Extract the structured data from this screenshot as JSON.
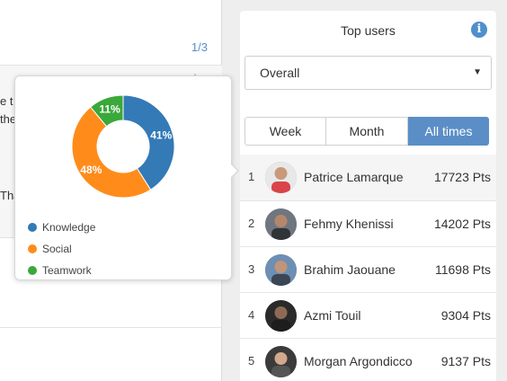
{
  "feed": {
    "pager": "1/3",
    "fragments": [
      {
        "text": "e t",
        "top": 105
      },
      {
        "text": "the",
        "top": 125
      },
      {
        "text": "Tha",
        "top": 210
      }
    ],
    "menu_dots": "⋮"
  },
  "popover": {
    "chart_data": {
      "type": "pie",
      "categories": [
        "Knowledge",
        "Social",
        "Teamwork"
      ],
      "values": [
        41,
        48,
        11
      ],
      "labels": [
        "41%",
        "48%",
        "11%"
      ],
      "colors": [
        "#337ab7",
        "#ff8c1a",
        "#3aa83a"
      ],
      "donut": true,
      "legend": "bottom-left"
    }
  },
  "panel": {
    "title": "Top users",
    "info_glyph": "i",
    "period_select": "Overall",
    "tabs": [
      {
        "label": "Week",
        "active": false
      },
      {
        "label": "Month",
        "active": false
      },
      {
        "label": "All times",
        "active": true
      }
    ],
    "users": [
      {
        "rank": "1",
        "name": "Patrice Lamarque",
        "points": "17723 Pts"
      },
      {
        "rank": "2",
        "name": "Fehmy Khenissi",
        "points": "14202 Pts"
      },
      {
        "rank": "3",
        "name": "Brahim Jaouane",
        "points": "11698 Pts"
      },
      {
        "rank": "4",
        "name": "Azmi Touil",
        "points": "9304 Pts"
      },
      {
        "rank": "5",
        "name": "Morgan Argondicco",
        "points": "9137 Pts"
      }
    ]
  },
  "colors": {
    "accent": "#5b8ec7",
    "knowledge": "#337ab7",
    "social": "#ff8c1a",
    "teamwork": "#3aa83a"
  }
}
